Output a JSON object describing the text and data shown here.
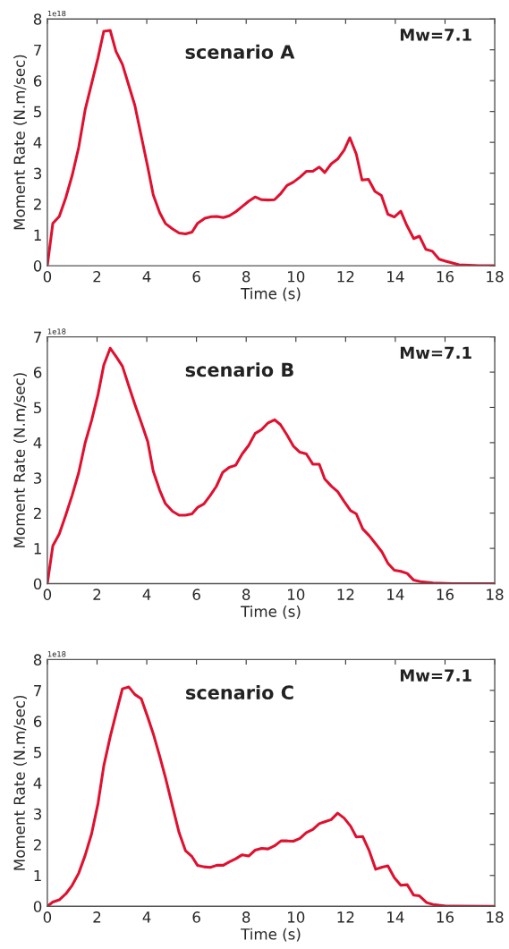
{
  "chart_data": [
    {
      "type": "line",
      "xlabel": "Time (s)",
      "ylabel": "Moment Rate (N.m/sec)",
      "annotations": [
        "scenario A",
        "Mw=7.1",
        "1e18"
      ],
      "xlim": [
        0,
        18
      ],
      "xticks": [
        0,
        2,
        4,
        6,
        8,
        10,
        12,
        14,
        16,
        18
      ],
      "ylim": [
        0,
        8
      ],
      "yticks": [
        0,
        1,
        2,
        3,
        4,
        5,
        6,
        7,
        8
      ],
      "grid": false,
      "legend": false,
      "marker": "none",
      "line_style": "solid",
      "x": [
        0,
        0.22,
        0.48,
        0.74,
        1.0,
        1.26,
        1.52,
        1.78,
        2.04,
        2.27,
        2.53,
        2.76,
        3.02,
        3.28,
        3.52,
        3.78,
        4.04,
        4.26,
        4.52,
        4.75,
        5.04,
        5.3,
        5.56,
        5.82,
        6.04,
        6.34,
        6.6,
        6.82,
        7.08,
        7.32,
        7.58,
        7.84,
        8.1,
        8.36,
        8.62,
        8.88,
        9.14,
        9.4,
        9.64,
        9.9,
        10.16,
        10.42,
        10.68,
        10.94,
        11.16,
        11.42,
        11.68,
        11.94,
        12.17,
        12.43,
        12.66,
        12.92,
        13.18,
        13.44,
        13.7,
        13.96,
        14.22,
        14.45,
        14.74,
        14.97,
        15.23,
        15.49,
        15.76,
        16.02,
        16.56,
        17.35,
        18
      ],
      "series": [
        {
          "color": "#e0102f",
          "values": [
            0,
            1.37,
            1.6,
            2.2,
            2.93,
            3.83,
            5.05,
            5.9,
            6.75,
            7.6,
            7.63,
            6.95,
            6.53,
            5.84,
            5.2,
            4.2,
            3.2,
            2.3,
            1.72,
            1.37,
            1.19,
            1.06,
            1.03,
            1.09,
            1.37,
            1.54,
            1.59,
            1.6,
            1.56,
            1.62,
            1.75,
            1.92,
            2.09,
            2.23,
            2.14,
            2.13,
            2.14,
            2.35,
            2.6,
            2.71,
            2.87,
            3.06,
            3.06,
            3.2,
            3.02,
            3.3,
            3.46,
            3.75,
            4.15,
            3.62,
            2.78,
            2.8,
            2.41,
            2.28,
            1.67,
            1.58,
            1.77,
            1.33,
            0.88,
            0.96,
            0.53,
            0.47,
            0.21,
            0.15,
            0.03,
            0,
            0
          ]
        }
      ]
    },
    {
      "type": "line",
      "xlabel": "Time (s)",
      "ylabel": "Moment Rate (N.m/sec)",
      "annotations": [
        "scenario B",
        "Mw=7.1",
        "1e18"
      ],
      "xlim": [
        0,
        18
      ],
      "xticks": [
        0,
        2,
        4,
        6,
        8,
        10,
        12,
        14,
        16,
        18
      ],
      "ylim": [
        0,
        7
      ],
      "yticks": [
        0,
        1,
        2,
        3,
        4,
        5,
        6,
        7
      ],
      "grid": false,
      "legend": false,
      "marker": "none",
      "line_style": "solid",
      "x": [
        0,
        0.22,
        0.48,
        0.74,
        1.0,
        1.26,
        1.52,
        1.78,
        2.04,
        2.27,
        2.53,
        2.76,
        3.02,
        3.28,
        3.52,
        3.78,
        4.04,
        4.26,
        4.52,
        4.75,
        5.04,
        5.3,
        5.56,
        5.82,
        6.04,
        6.3,
        6.56,
        6.8,
        7.06,
        7.32,
        7.58,
        7.84,
        8.1,
        8.36,
        8.62,
        8.88,
        9.14,
        9.38,
        9.64,
        9.9,
        10.16,
        10.42,
        10.68,
        10.94,
        11.16,
        11.42,
        11.68,
        11.94,
        12.2,
        12.43,
        12.69,
        12.95,
        13.21,
        13.46,
        13.7,
        13.96,
        14.22,
        14.48,
        14.74,
        15.0,
        15.52,
        16.3,
        18
      ],
      "series": [
        {
          "color": "#e0102f",
          "values": [
            0,
            1.07,
            1.41,
            1.94,
            2.51,
            3.14,
            3.99,
            4.63,
            5.37,
            6.2,
            6.68,
            6.45,
            6.17,
            5.6,
            5.09,
            4.57,
            4.03,
            3.19,
            2.65,
            2.27,
            2.05,
            1.94,
            1.94,
            1.98,
            2.16,
            2.26,
            2.51,
            2.76,
            3.16,
            3.3,
            3.36,
            3.68,
            3.92,
            4.26,
            4.37,
            4.56,
            4.65,
            4.51,
            4.22,
            3.9,
            3.73,
            3.68,
            3.39,
            3.39,
            2.97,
            2.77,
            2.61,
            2.33,
            2.07,
            1.98,
            1.55,
            1.36,
            1.13,
            0.9,
            0.58,
            0.38,
            0.35,
            0.29,
            0.1,
            0.06,
            0.02,
            0,
            0
          ]
        }
      ]
    },
    {
      "type": "line",
      "xlabel": "Time (s)",
      "ylabel": "Moment Rate (N.m/sec)",
      "annotations": [
        "scenario C",
        "Mw=7.1",
        "1e18"
      ],
      "xlim": [
        0,
        18
      ],
      "xticks": [
        0,
        2,
        4,
        6,
        8,
        10,
        12,
        14,
        16,
        18
      ],
      "ylim": [
        0,
        8
      ],
      "yticks": [
        0,
        1,
        2,
        3,
        4,
        5,
        6,
        7,
        8
      ],
      "grid": false,
      "legend": false,
      "marker": "none",
      "line_style": "solid",
      "x": [
        0,
        0.22,
        0.48,
        0.74,
        1.0,
        1.26,
        1.52,
        1.78,
        2.04,
        2.27,
        2.53,
        2.76,
        3.02,
        3.28,
        3.52,
        3.78,
        4.04,
        4.26,
        4.52,
        4.75,
        5.04,
        5.3,
        5.56,
        5.82,
        6.04,
        6.3,
        6.56,
        6.82,
        7.08,
        7.32,
        7.58,
        7.84,
        8.1,
        8.36,
        8.62,
        8.88,
        9.14,
        9.4,
        9.66,
        9.9,
        10.16,
        10.42,
        10.68,
        10.94,
        11.16,
        11.42,
        11.68,
        11.94,
        12.2,
        12.43,
        12.69,
        12.95,
        13.21,
        13.47,
        13.7,
        13.96,
        14.22,
        14.48,
        14.74,
        14.97,
        15.26,
        15.52,
        16.04,
        18
      ],
      "series": [
        {
          "color": "#e0102f",
          "values": [
            0,
            0.14,
            0.21,
            0.4,
            0.68,
            1.07,
            1.65,
            2.35,
            3.34,
            4.55,
            5.5,
            6.24,
            7.05,
            7.11,
            6.87,
            6.73,
            6.13,
            5.6,
            4.87,
            4.18,
            3.23,
            2.39,
            1.8,
            1.61,
            1.33,
            1.28,
            1.26,
            1.33,
            1.33,
            1.44,
            1.54,
            1.67,
            1.63,
            1.82,
            1.88,
            1.86,
            1.96,
            2.12,
            2.12,
            2.11,
            2.2,
            2.39,
            2.49,
            2.68,
            2.74,
            2.81,
            3.02,
            2.86,
            2.6,
            2.25,
            2.26,
            1.8,
            1.2,
            1.27,
            1.31,
            0.93,
            0.68,
            0.7,
            0.36,
            0.34,
            0.12,
            0.06,
            0.01,
            0
          ]
        }
      ]
    }
  ]
}
